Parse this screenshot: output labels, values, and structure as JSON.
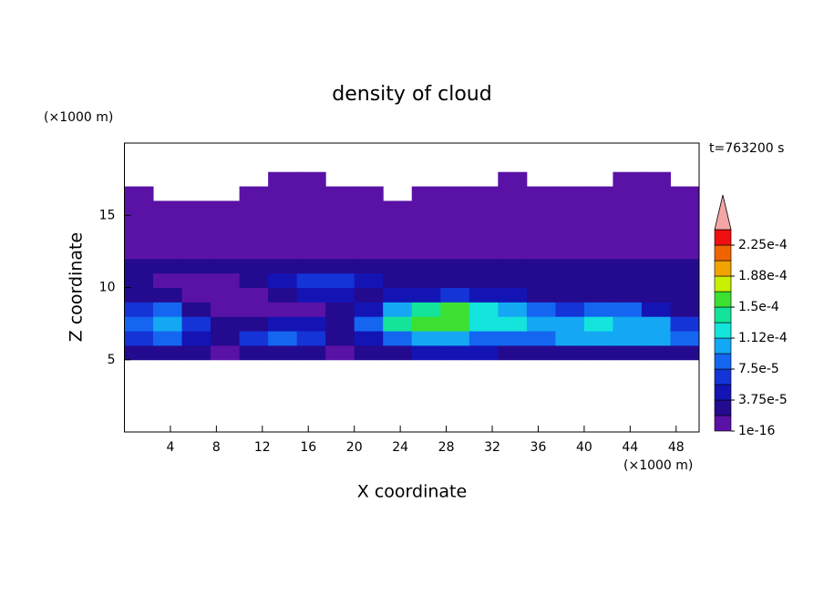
{
  "chart_data": {
    "type": "contour",
    "title": "density of cloud",
    "x_label": "X coordinate",
    "y_label": "Z coordinate",
    "x_unit": "(×1000 m)",
    "y_unit": "(×1000 m)",
    "annotation": "t=763200 s",
    "xlim": [
      0,
      50
    ],
    "ylim": [
      0,
      20
    ],
    "xticks": [
      4,
      8,
      12,
      16,
      20,
      24,
      28,
      32,
      36,
      40,
      44,
      48
    ],
    "yticks": [
      5,
      10,
      15
    ],
    "xbins": [
      0,
      2.5,
      5,
      7.5,
      10,
      12.5,
      15,
      17.5,
      20,
      22.5,
      25,
      27.5,
      30,
      32.5,
      35,
      37.5,
      40,
      42.5,
      45,
      47.5,
      50
    ],
    "zbins": [
      5,
      6,
      7,
      8,
      9,
      10,
      11,
      12,
      13,
      14,
      15,
      16,
      17,
      18
    ],
    "values": [
      [
        3e-05,
        2e-05,
        2e-05,
        1e-06,
        2e-05,
        3e-05,
        3e-05,
        1e-06,
        2e-05,
        3e-05,
        4e-05,
        4e-05,
        4e-05,
        3e-05,
        3e-05,
        3e-05,
        3e-05,
        3e-05,
        3e-05,
        3e-05
      ],
      [
        6e-05,
        8e-05,
        5e-05,
        2e-05,
        6e-05,
        8e-05,
        7e-05,
        2e-05,
        5e-05,
        9e-05,
        0.0001,
        0.0001,
        9e-05,
        9e-05,
        9e-05,
        0.0001,
        0.0001,
        0.0001,
        0.0001,
        8e-05
      ],
      [
        8e-05,
        0.0001,
        6e-05,
        2e-05,
        3e-05,
        5e-05,
        4e-05,
        2e-05,
        8e-05,
        0.00014,
        0.00015,
        0.00015,
        0.00013,
        0.00012,
        0.00011,
        0.00011,
        0.000115,
        0.00011,
        0.0001,
        7e-05
      ],
      [
        6e-05,
        8e-05,
        3e-05,
        1e-06,
        1e-06,
        1e-06,
        1e-06,
        2e-05,
        5e-05,
        0.0001,
        0.000145,
        0.00016,
        0.00012,
        0.0001,
        8e-05,
        7e-05,
        8e-05,
        8e-05,
        5e-05,
        3e-05
      ],
      [
        3e-05,
        2e-05,
        1e-06,
        1e-06,
        1e-06,
        2e-05,
        4e-05,
        4e-05,
        3e-05,
        4e-05,
        5e-05,
        6e-05,
        5e-05,
        4e-05,
        3e-05,
        3e-05,
        2e-05,
        3e-05,
        2e-05,
        2e-05
      ],
      [
        2e-05,
        1e-06,
        1e-06,
        1e-06,
        2e-05,
        5e-05,
        7e-05,
        6e-05,
        4e-05,
        2e-05,
        2e-05,
        2e-05,
        2e-05,
        2e-05,
        2e-05,
        2e-05,
        2e-05,
        2e-05,
        2e-05,
        2e-05
      ],
      [
        2e-05,
        2e-05,
        2e-05,
        2e-05,
        3e-05,
        3e-05,
        3e-05,
        3e-05,
        2e-05,
        2e-05,
        2e-05,
        2e-05,
        2e-05,
        3e-05,
        3e-05,
        3e-05,
        3e-05,
        3e-05,
        3e-05,
        3e-05
      ],
      [
        1e-06,
        1e-06,
        1e-06,
        1e-06,
        1e-06,
        1e-06,
        1e-06,
        1e-06,
        1e-06,
        1e-06,
        1e-06,
        1e-06,
        1e-06,
        1e-06,
        1e-06,
        1e-06,
        1e-06,
        1e-06,
        1e-06,
        1e-06
      ],
      [
        1e-06,
        1e-06,
        1e-06,
        1e-06,
        1e-06,
        1e-06,
        1e-06,
        1e-06,
        1e-06,
        1e-06,
        1e-06,
        1e-06,
        1e-06,
        1e-06,
        1e-06,
        1e-06,
        1e-06,
        1e-06,
        1e-06,
        1e-06
      ],
      [
        1e-06,
        1e-06,
        1e-06,
        1e-06,
        1e-06,
        1e-06,
        1e-06,
        1e-06,
        1e-06,
        1e-06,
        1e-06,
        1e-06,
        1e-06,
        1e-06,
        1e-06,
        1e-06,
        1e-06,
        1e-06,
        1e-06,
        1e-06
      ],
      [
        1e-06,
        1e-06,
        1e-06,
        1e-06,
        1e-06,
        1e-06,
        1e-06,
        1e-06,
        1e-06,
        1e-06,
        1e-06,
        1e-06,
        1e-06,
        1e-06,
        1e-06,
        1e-06,
        1e-06,
        1e-06,
        1e-06,
        1e-06
      ],
      [
        1e-06,
        null,
        null,
        null,
        1e-06,
        1e-06,
        1e-06,
        1e-06,
        1e-06,
        null,
        1e-06,
        1e-06,
        1e-06,
        1e-06,
        1e-06,
        1e-06,
        1e-06,
        1e-06,
        1e-06,
        1e-06
      ],
      [
        null,
        null,
        null,
        null,
        null,
        1e-06,
        1e-06,
        null,
        null,
        null,
        null,
        null,
        null,
        1e-06,
        null,
        null,
        null,
        1e-06,
        1e-06,
        null
      ]
    ],
    "levels": [
      1e-16,
      1.875e-05,
      3.75e-05,
      5.625e-05,
      7.5e-05,
      9.375e-05,
      0.0001125,
      0.00013125,
      0.00015,
      0.00016875,
      0.0001875,
      0.00020625,
      0.000225,
      0.00024375
    ],
    "level_colors": [
      "#5a12a6",
      "#240a8e",
      "#1414b4",
      "#1434d8",
      "#1466f0",
      "#14a8f4",
      "#14e4dc",
      "#14e49a",
      "#3ce032",
      "#c8f000",
      "#f0a400",
      "#f06400",
      "#ee1010"
    ],
    "extend_color": "#f4a6a6",
    "colorbar_ticks": [
      {
        "value": 1e-16,
        "label": "1e-16"
      },
      {
        "value": 3.75e-05,
        "label": "3.75e-5"
      },
      {
        "value": 7.5e-05,
        "label": "7.5e-5"
      },
      {
        "value": 0.0001125,
        "label": "1.12e-4"
      },
      {
        "value": 0.00015,
        "label": "1.5e-4"
      },
      {
        "value": 0.0001875,
        "label": "1.88e-4"
      },
      {
        "value": 0.000225,
        "label": "2.25e-4"
      }
    ]
  }
}
